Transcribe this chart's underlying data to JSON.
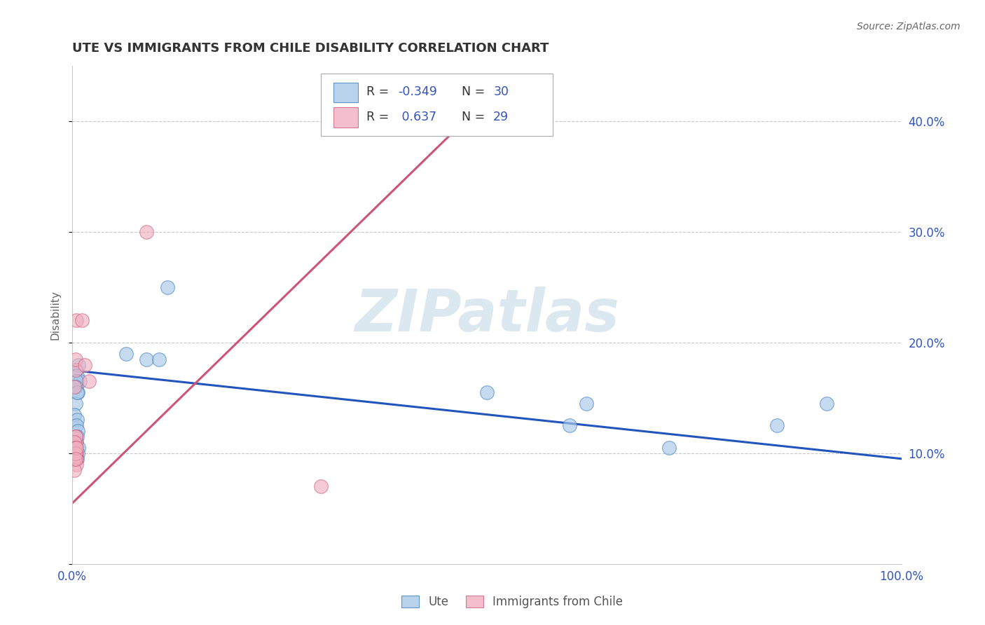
{
  "title": "UTE VS IMMIGRANTS FROM CHILE DISABILITY CORRELATION CHART",
  "source": "Source: ZipAtlas.com",
  "ylabel": "Disability",
  "xlim": [
    0.0,
    1.0
  ],
  "ylim": [
    0.0,
    0.45
  ],
  "grid_color": "#c8c8c8",
  "background_color": "#ffffff",
  "blue_color": "#a8c8e8",
  "pink_color": "#f0b0c0",
  "blue_edge_color": "#4080c0",
  "pink_edge_color": "#d06080",
  "blue_line_color": "#2255bb",
  "pink_line_color": "#cc5577",
  "legend_R_blue": "-0.349",
  "legend_N_blue": "30",
  "legend_R_pink": "0.637",
  "legend_N_pink": "29",
  "legend_label_blue": "Ute",
  "legend_label_pink": "Immigrants from Chile",
  "text_color": "#3355bb",
  "title_color": "#333333",
  "watermark_color": "#dce8f0",
  "ute_x": [
    0.005,
    0.008,
    0.006,
    0.009,
    0.007,
    0.004,
    0.003,
    0.006,
    0.005,
    0.007,
    0.006,
    0.005,
    0.008,
    0.004,
    0.005,
    0.007,
    0.006,
    0.005,
    0.004,
    0.006,
    0.065,
    0.09,
    0.105,
    0.115,
    0.5,
    0.6,
    0.62,
    0.72,
    0.85,
    0.91
  ],
  "ute_y": [
    0.175,
    0.18,
    0.17,
    0.165,
    0.155,
    0.145,
    0.135,
    0.13,
    0.125,
    0.12,
    0.115,
    0.11,
    0.105,
    0.105,
    0.1,
    0.1,
    0.095,
    0.165,
    0.16,
    0.155,
    0.19,
    0.185,
    0.185,
    0.25,
    0.155,
    0.125,
    0.145,
    0.105,
    0.125,
    0.145
  ],
  "chile_x": [
    0.003,
    0.004,
    0.003,
    0.004,
    0.005,
    0.003,
    0.004,
    0.003,
    0.005,
    0.004,
    0.003,
    0.004,
    0.003,
    0.004,
    0.003,
    0.004,
    0.003,
    0.004,
    0.005,
    0.004,
    0.003,
    0.004,
    0.005,
    0.004,
    0.012,
    0.015,
    0.02,
    0.09,
    0.3
  ],
  "chile_y": [
    0.105,
    0.11,
    0.1,
    0.115,
    0.095,
    0.105,
    0.1,
    0.095,
    0.09,
    0.115,
    0.105,
    0.1,
    0.11,
    0.105,
    0.095,
    0.1,
    0.085,
    0.1,
    0.105,
    0.095,
    0.16,
    0.175,
    0.22,
    0.185,
    0.22,
    0.18,
    0.165,
    0.3,
    0.07
  ],
  "blue_line_x": [
    0.0,
    1.0
  ],
  "blue_line_y": [
    0.175,
    0.095
  ],
  "pink_line_x": [
    -0.02,
    0.5
  ],
  "pink_line_y": [
    0.04,
    0.42
  ]
}
